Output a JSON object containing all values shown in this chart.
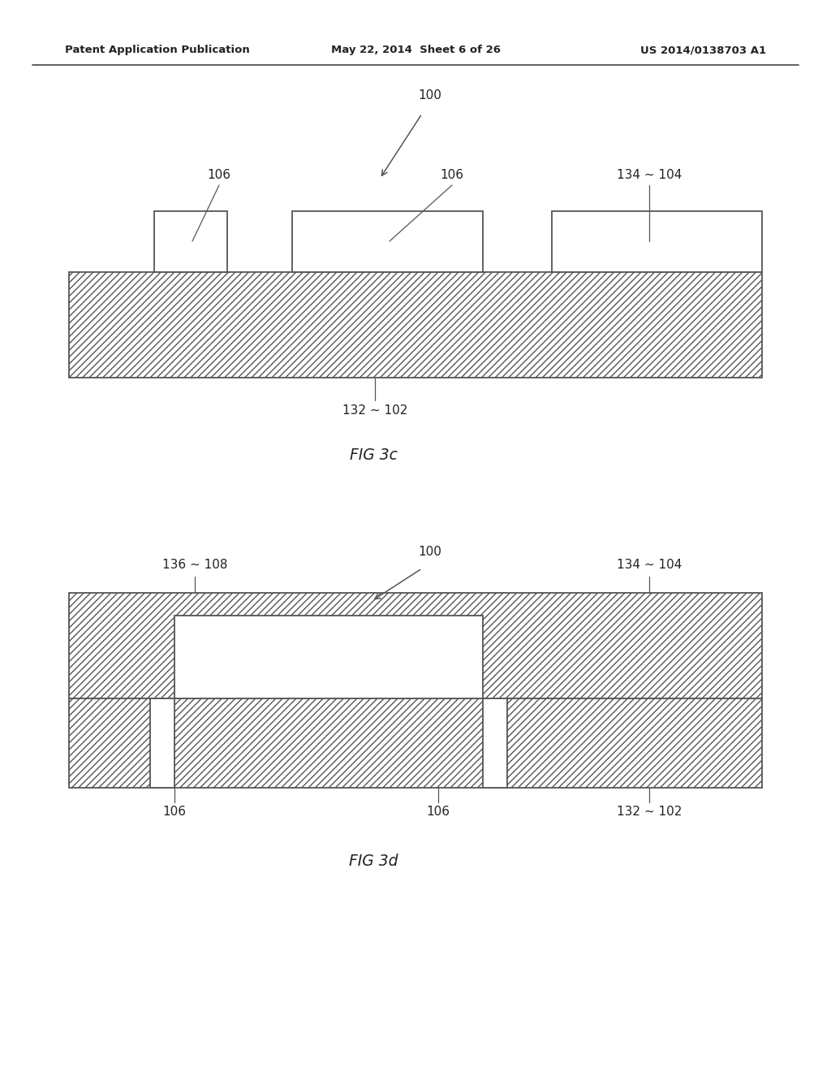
{
  "background_color": "#ffffff",
  "line_color": "#000000",
  "header": {
    "left": "Patent Application Publication",
    "center": "May 22, 2014  Sheet 6 of 26",
    "right": "US 2014/0138703 A1"
  },
  "fig3c": {
    "label": "FIG 3c"
  },
  "fig3d": {
    "label": "FIG 3d"
  }
}
